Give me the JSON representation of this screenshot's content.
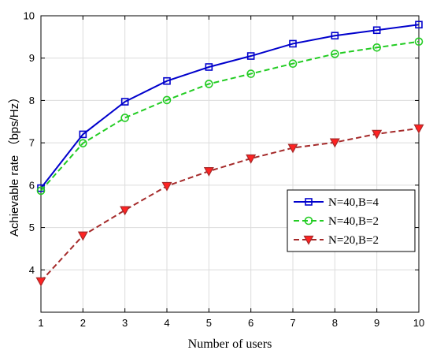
{
  "chart_data": {
    "type": "line",
    "title": "",
    "xlabel": "Number of users",
    "ylabel": "Achievable rate （bps/Hz）",
    "xlim": [
      1,
      10
    ],
    "ylim": [
      3,
      10
    ],
    "xticks": [
      1,
      2,
      3,
      4,
      5,
      6,
      7,
      8,
      9,
      10
    ],
    "yticks": [
      4,
      5,
      6,
      7,
      8,
      9,
      10
    ],
    "grid": true,
    "legend_position": "lower-right",
    "x": [
      1,
      2,
      3,
      4,
      5,
      6,
      7,
      8,
      9,
      10
    ],
    "series": [
      {
        "name": "N=40,B=4",
        "values": [
          5.93,
          7.2,
          7.97,
          8.46,
          8.79,
          9.05,
          9.34,
          9.53,
          9.66,
          9.79
        ],
        "color": "#0000cc",
        "line_style": "solid",
        "marker": "square"
      },
      {
        "name": "N=40,B=2",
        "values": [
          5.87,
          6.99,
          7.59,
          8.01,
          8.39,
          8.63,
          8.87,
          9.1,
          9.25,
          9.39
        ],
        "color": "#22cc22",
        "line_style": "dashed",
        "marker": "circle"
      },
      {
        "name": "N=20,B=2",
        "values": [
          3.73,
          4.81,
          5.41,
          5.98,
          6.33,
          6.63,
          6.88,
          7.01,
          7.21,
          7.34
        ],
        "color": "#a52a2a",
        "line_style": "dashed",
        "marker": "triangle-down",
        "marker_fill": "#ff2222"
      }
    ]
  }
}
